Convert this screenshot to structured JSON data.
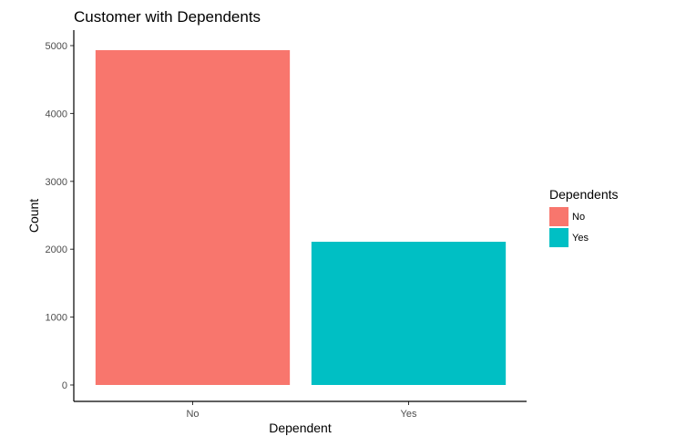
{
  "chart_data": {
    "type": "bar",
    "title": "Customer with Dependents",
    "xlabel": "Dependent",
    "ylabel": "Count",
    "categories": [
      "No",
      "Yes"
    ],
    "values": [
      4933,
      2110
    ],
    "colors": [
      "#F8766D",
      "#00BFC4"
    ],
    "ylim": [
      0,
      5000
    ],
    "yticks": [
      0,
      1000,
      2000,
      3000,
      4000,
      5000
    ],
    "grid": false,
    "legend": {
      "title": "Dependents",
      "placement": "right",
      "entries": [
        "No",
        "Yes"
      ]
    }
  }
}
